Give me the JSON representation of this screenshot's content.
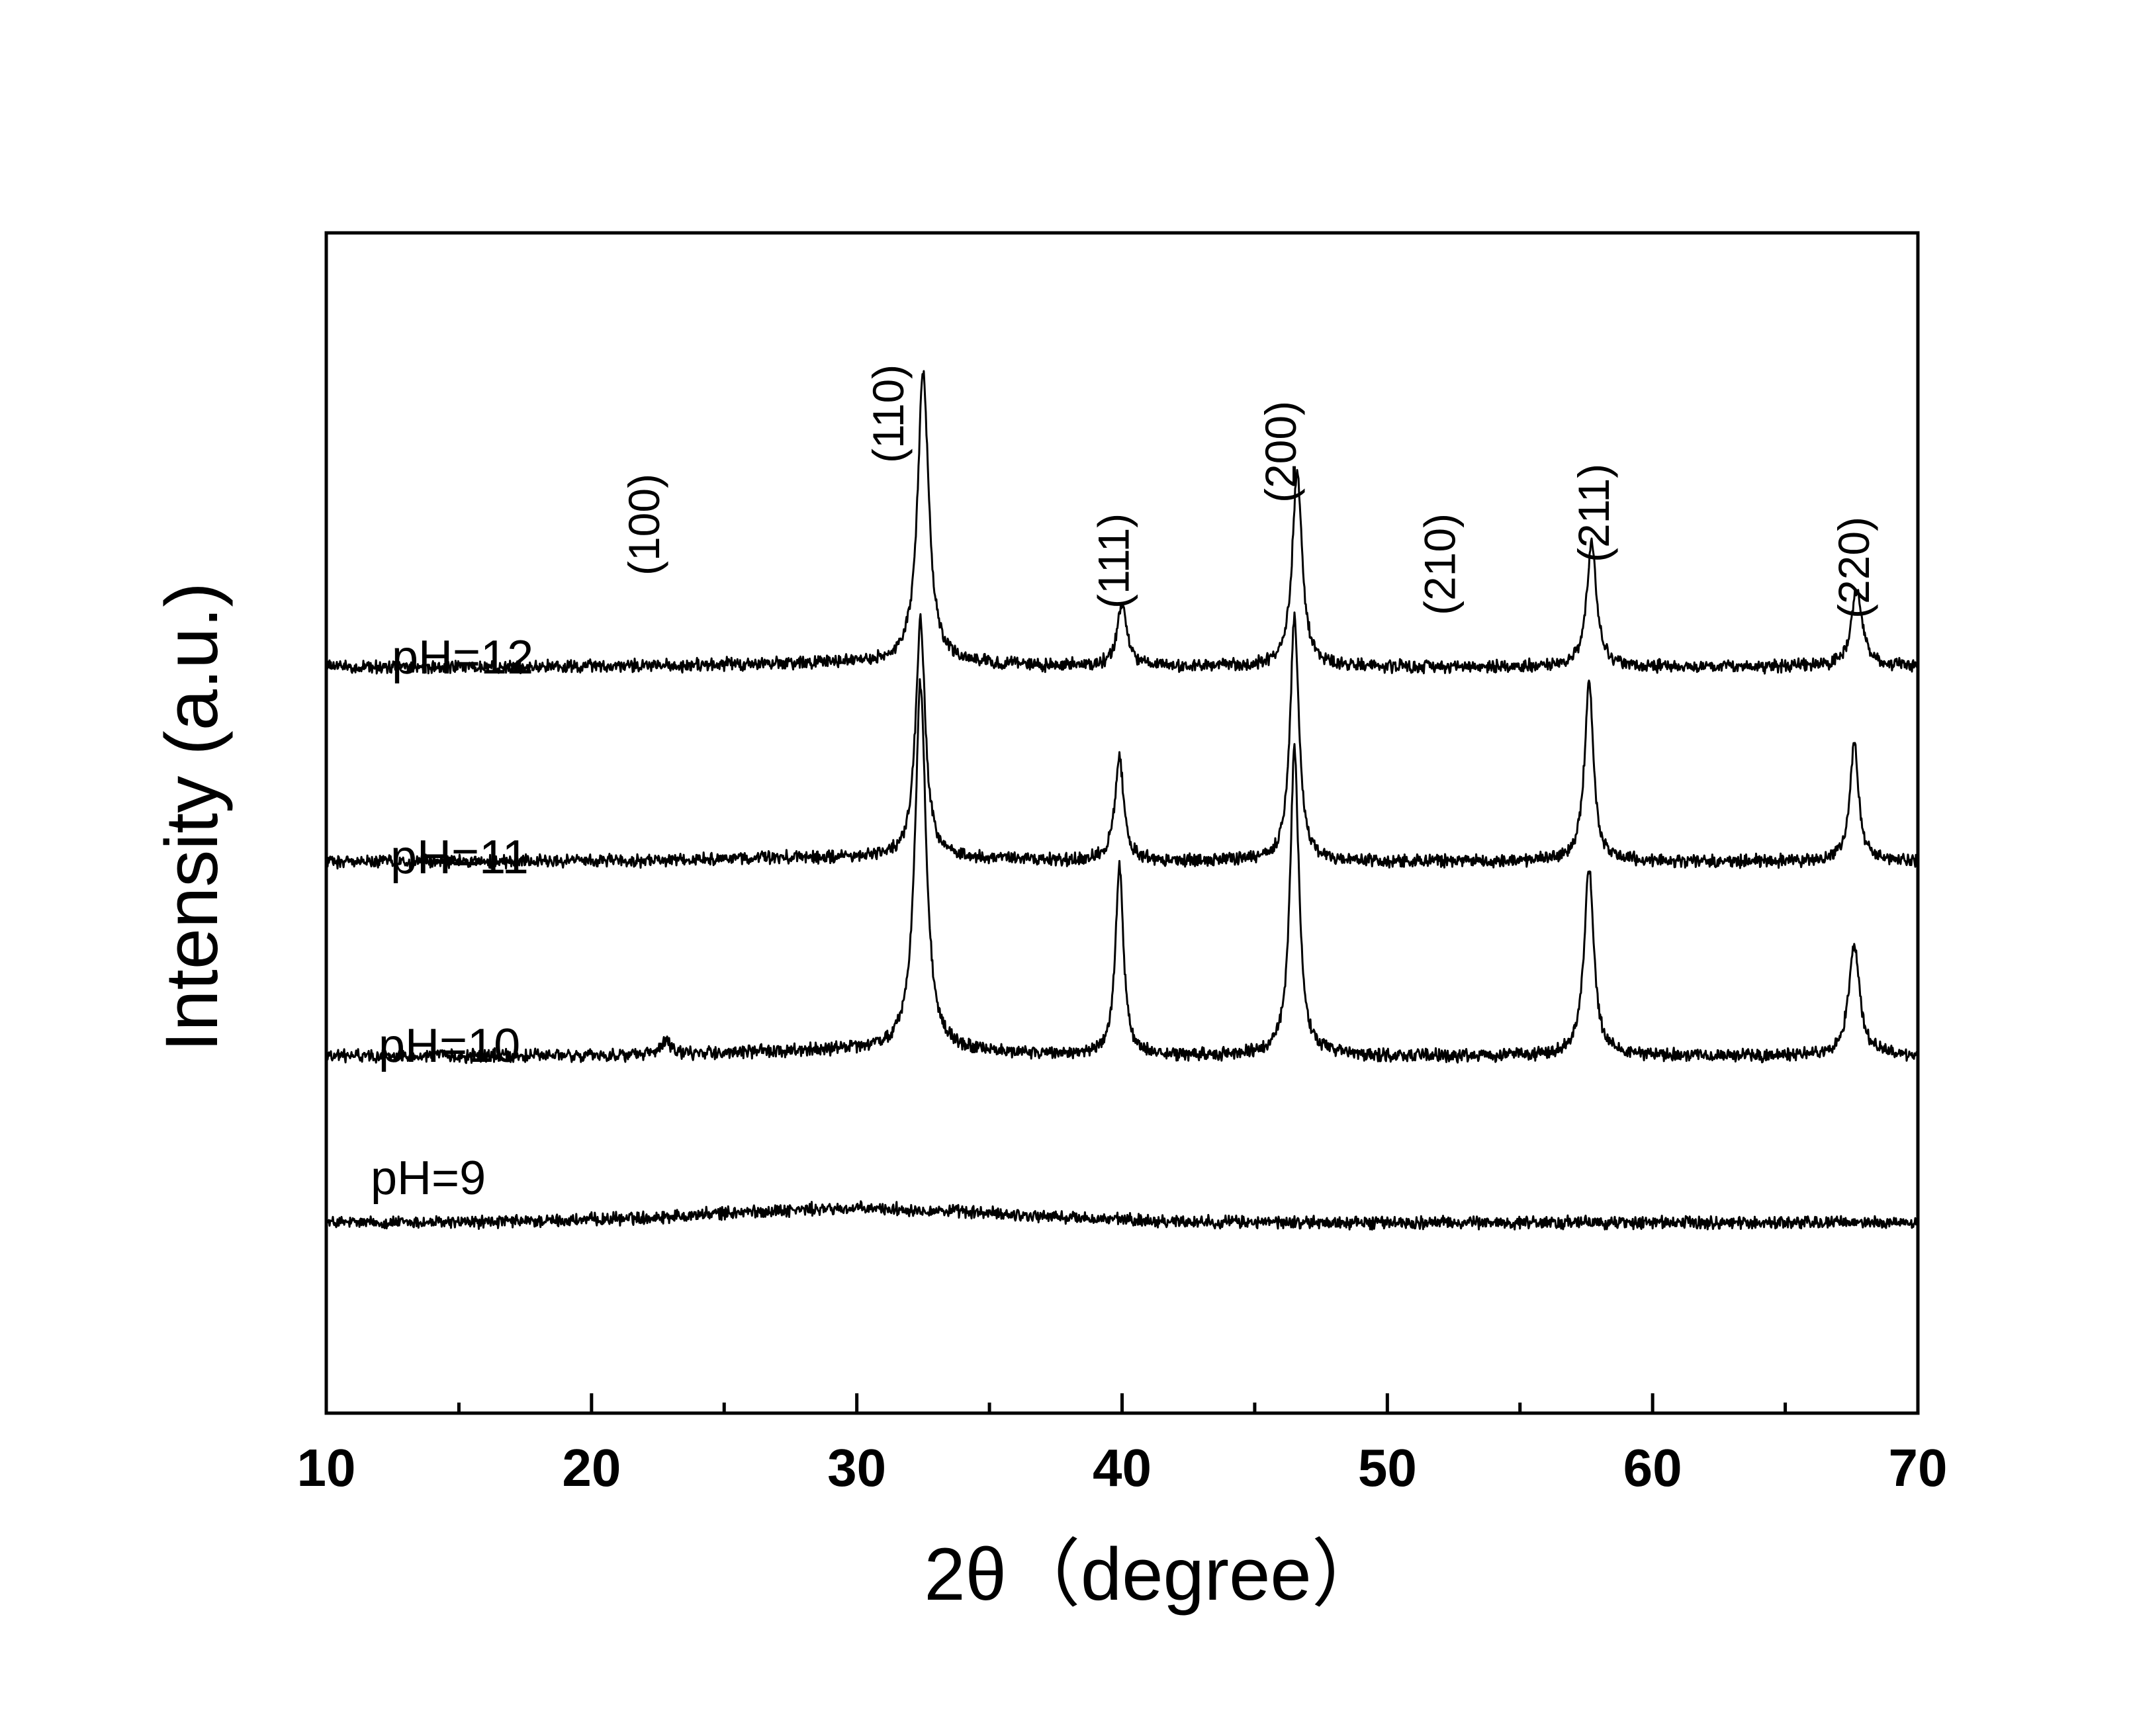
{
  "chart_data": {
    "type": "line",
    "title": "",
    "xlabel": "2θ（degree）",
    "ylabel": "Intensity (a.u.)",
    "xlim": [
      10,
      70
    ],
    "xticks": [
      "10",
      "20",
      "30",
      "40",
      "50",
      "60",
      "70"
    ],
    "grid": false,
    "legend": "inline labels at left of each trace",
    "series": [
      {
        "name": "pH=9",
        "baseline": 0.2,
        "amorphous_hump": {
          "center": 30,
          "width": 8,
          "height": 0.1
        },
        "peaks": []
      },
      {
        "name": "pH=10",
        "baseline": 1.4,
        "amorphous_hump": {
          "center": 30,
          "width": 6,
          "height": 0.04
        },
        "peaks": [
          {
            "x": 22.8,
            "height": 0.1,
            "width": 0.18
          },
          {
            "x": 32.4,
            "height": 2.65,
            "width": 0.25
          },
          {
            "x": 39.9,
            "height": 1.35,
            "width": 0.18
          },
          {
            "x": 46.5,
            "height": 2.2,
            "width": 0.2
          },
          {
            "x": 57.6,
            "height": 1.35,
            "width": 0.22
          },
          {
            "x": 67.6,
            "height": 0.8,
            "width": 0.25
          }
        ]
      },
      {
        "name": "pH=11",
        "baseline": 2.8,
        "amorphous_hump": {
          "center": 30,
          "width": 6,
          "height": 0.03
        },
        "peaks": [
          {
            "x": 32.4,
            "height": 1.7,
            "width": 0.22
          },
          {
            "x": 39.9,
            "height": 0.75,
            "width": 0.2
          },
          {
            "x": 46.5,
            "height": 1.75,
            "width": 0.2
          },
          {
            "x": 57.6,
            "height": 1.3,
            "width": 0.2
          },
          {
            "x": 67.6,
            "height": 0.85,
            "width": 0.2
          }
        ]
      },
      {
        "name": "pH=12",
        "baseline": 4.2,
        "amorphous_hump": {
          "center": 30,
          "width": 6,
          "height": 0.03
        },
        "peaks": [
          {
            "x": 32.5,
            "height": 2.1,
            "width": 0.25
          },
          {
            "x": 40.0,
            "height": 0.45,
            "width": 0.22
          },
          {
            "x": 46.6,
            "height": 1.4,
            "width": 0.22
          },
          {
            "x": 57.7,
            "height": 0.9,
            "width": 0.22
          },
          {
            "x": 67.7,
            "height": 0.55,
            "width": 0.25
          }
        ]
      }
    ],
    "peak_annotations": [
      {
        "label": "(100)",
        "x": 22.0
      },
      {
        "label": "(110)",
        "x": 31.2
      },
      {
        "label": "(111)",
        "x": 39.7
      },
      {
        "label": "(200)",
        "x": 46.0
      },
      {
        "label": "(210)",
        "x": 52.0
      },
      {
        "label": "(211)",
        "x": 57.8
      },
      {
        "label": "(220)",
        "x": 67.6
      }
    ]
  }
}
